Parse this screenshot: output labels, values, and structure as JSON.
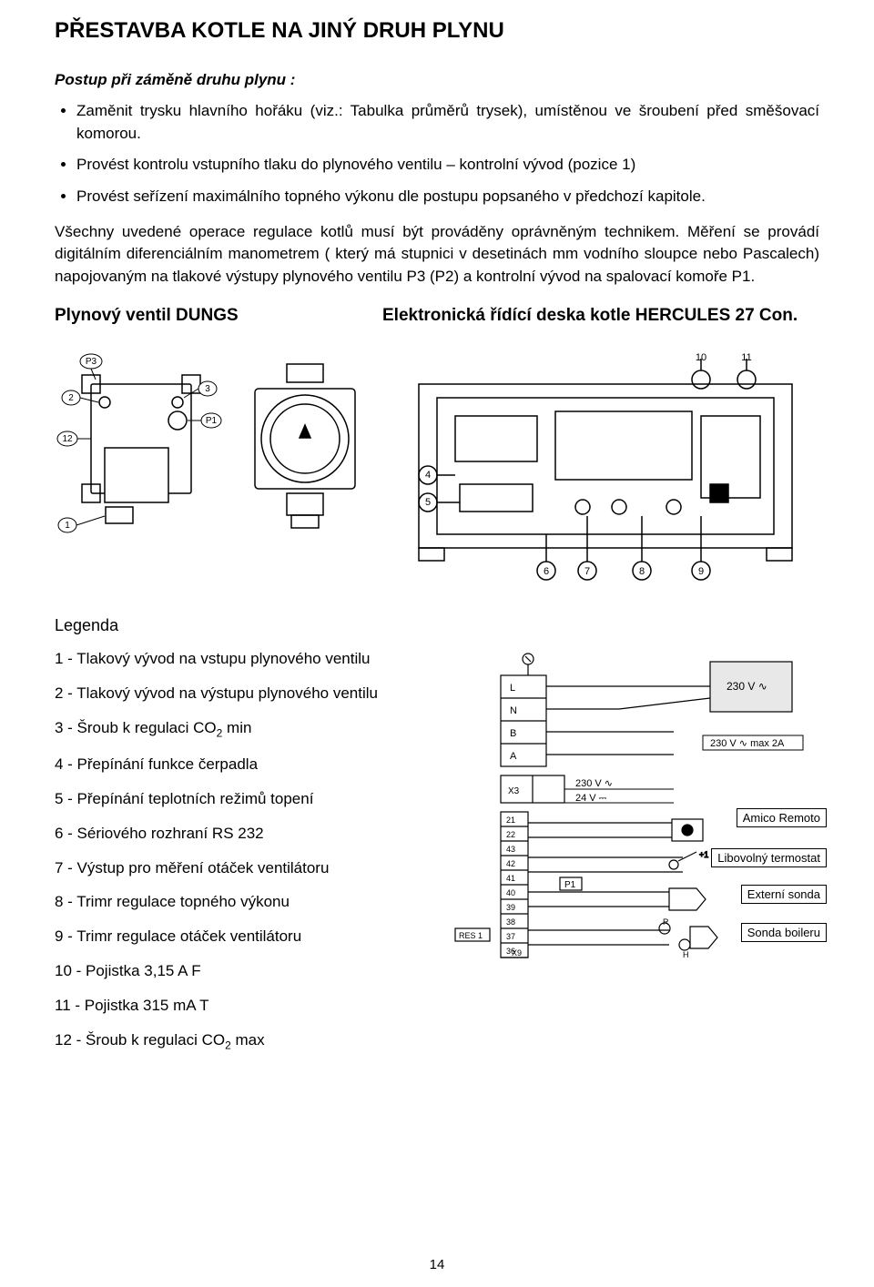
{
  "title": "PŘESTAVBA KOTLE NA JINÝ DRUH PLYNU",
  "subtitle": "Postup při záměně druhu plynu :",
  "bullets": [
    "Zaměnit trysku hlavního hořáku (viz.: Tabulka průměrů trysek), umístěnou ve šroubení před směšovací komorou.",
    "Provést kontrolu vstupního tlaku do plynového ventilu – kontrolní vývod (pozice 1)",
    "Provést seřízení maximálního topného výkonu dle postupu popsaného v předchozí kapitole."
  ],
  "paragraph": "Všechny uvedené operace regulace kotlů musí být prováděny oprávněným technikem. Měření se provádí digitálním diferenciálním manometrem ( který má stupnici v desetinách mm vodního sloupce nebo Pascalech) napojovaným na tlakové výstupy plynového ventilu P3 (P2) a kontrolní vývod na spalovací komoře P1.",
  "left_heading": "Plynový ventil DUNGS",
  "right_heading": "Elektronická řídící deska kotle HERCULES 27 Con.",
  "valve_callouts": [
    "P3",
    "2",
    "12",
    "1",
    "3",
    "P1"
  ],
  "board_callouts": [
    "10",
    "11",
    "4",
    "5",
    "6",
    "7",
    "8",
    "9"
  ],
  "legend_title": "Legenda",
  "legend": [
    {
      "n": "1",
      "t": "Tlakový vývod na vstupu plynového ventilu"
    },
    {
      "n": "2",
      "t": "Tlakový vývod na výstupu plynového ventilu"
    },
    {
      "n": "3",
      "t": "Šroub k regulaci CO",
      "sub": "2",
      "tail": " min"
    },
    {
      "n": "4",
      "t": "Přepínání funkce čerpadla"
    },
    {
      "n": "5",
      "t": "Přepínání teplotních režimů topení"
    },
    {
      "n": "6",
      "t": "Sériového rozhraní RS 232"
    },
    {
      "n": "7",
      "t": "Výstup pro měření otáček ventilátoru"
    },
    {
      "n": "8",
      "t": "Trimr regulace topného výkonu"
    },
    {
      "n": "9",
      "t": "Trimr regulace otáček ventilátoru"
    },
    {
      "n": "10",
      "t": "Pojistka 3,15 A F"
    },
    {
      "n": "11",
      "t": "Pojistka 315 mA T"
    },
    {
      "n": "12",
      "t": "Šroub k regulaci CO",
      "sub": "2",
      "tail": " max"
    }
  ],
  "wiring": {
    "terminals_left": [
      "L",
      "N",
      "B",
      "A"
    ],
    "v230": "230 V ∿",
    "v230max": "230 V ∿ max 2A",
    "v24": "24 V ⎓",
    "x3": "X3",
    "nums": [
      "21",
      "22",
      "43",
      "42",
      "41",
      "40",
      "39",
      "38",
      "37",
      "36"
    ],
    "p1": "P1",
    "res1": "RES 1",
    "x9": "X9",
    "r": "R",
    "h": "H"
  },
  "side_labels": [
    "Amico Remoto",
    "Libovolný termostat",
    "Externí sonda",
    "Sonda boileru"
  ],
  "pagenum": "14",
  "colors": {
    "line": "#000000",
    "bg": "#ffffff",
    "light": "#e8e8e8"
  }
}
